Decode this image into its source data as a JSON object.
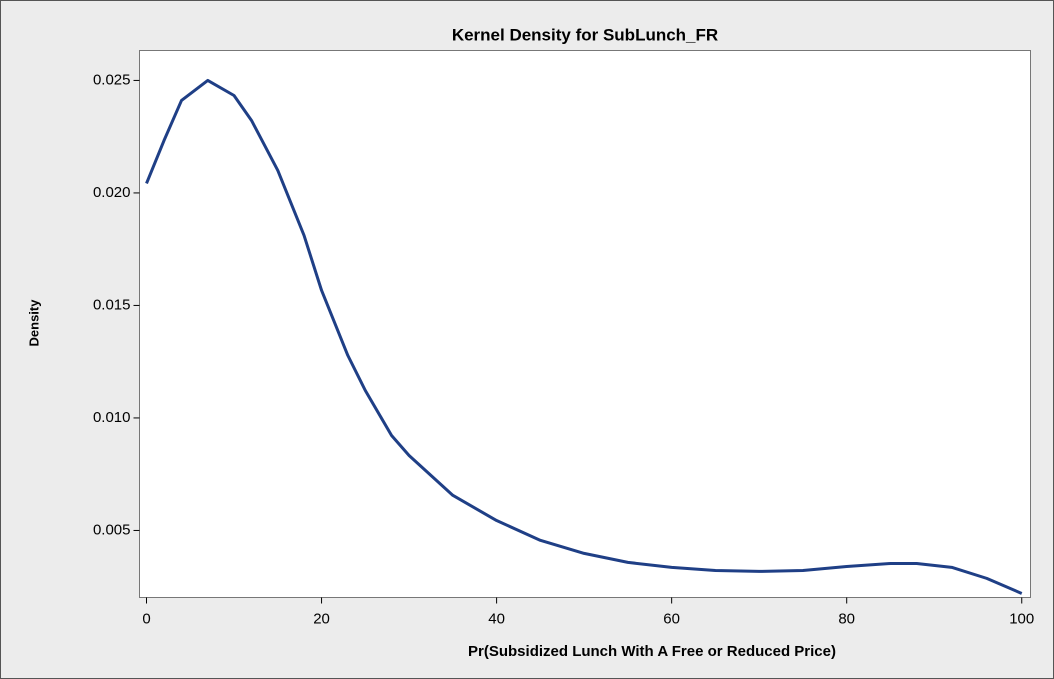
{
  "chart_data": {
    "type": "line",
    "title": "Kernel Density for SubLunch_FR",
    "x_label": "Pr(Subsidized Lunch With A Free or Reduced Price)",
    "y_label": "Density",
    "series": [
      {
        "name": "Density",
        "color": "#1f3f86",
        "x": [
          0,
          2,
          4,
          7,
          10,
          12,
          15,
          18,
          20,
          23,
          25,
          28,
          30,
          35,
          40,
          45,
          50,
          55,
          60,
          65,
          70,
          75,
          80,
          85,
          88,
          92,
          96,
          100
        ],
        "values": [
          0.02042,
          0.02233,
          0.02411,
          0.025,
          0.02433,
          0.02322,
          0.021,
          0.01811,
          0.01567,
          0.01278,
          0.01122,
          0.00922,
          0.00833,
          0.00656,
          0.00544,
          0.00456,
          0.00398,
          0.00358,
          0.00336,
          0.00322,
          0.00318,
          0.00322,
          0.0034,
          0.00353,
          0.00353,
          0.00336,
          0.00287,
          0.0022
        ]
      }
    ],
    "xlim": [
      -0.8,
      101
    ],
    "xticks": [
      0,
      20,
      40,
      60,
      80,
      100
    ],
    "ylim": [
      0.00202,
      0.02633
    ],
    "yticks": [
      0.005,
      {
        "value": 0.01,
        "label": "0.010"
      },
      0.015,
      {
        "value": 0.02,
        "label": "0.020"
      },
      0.025
    ]
  }
}
